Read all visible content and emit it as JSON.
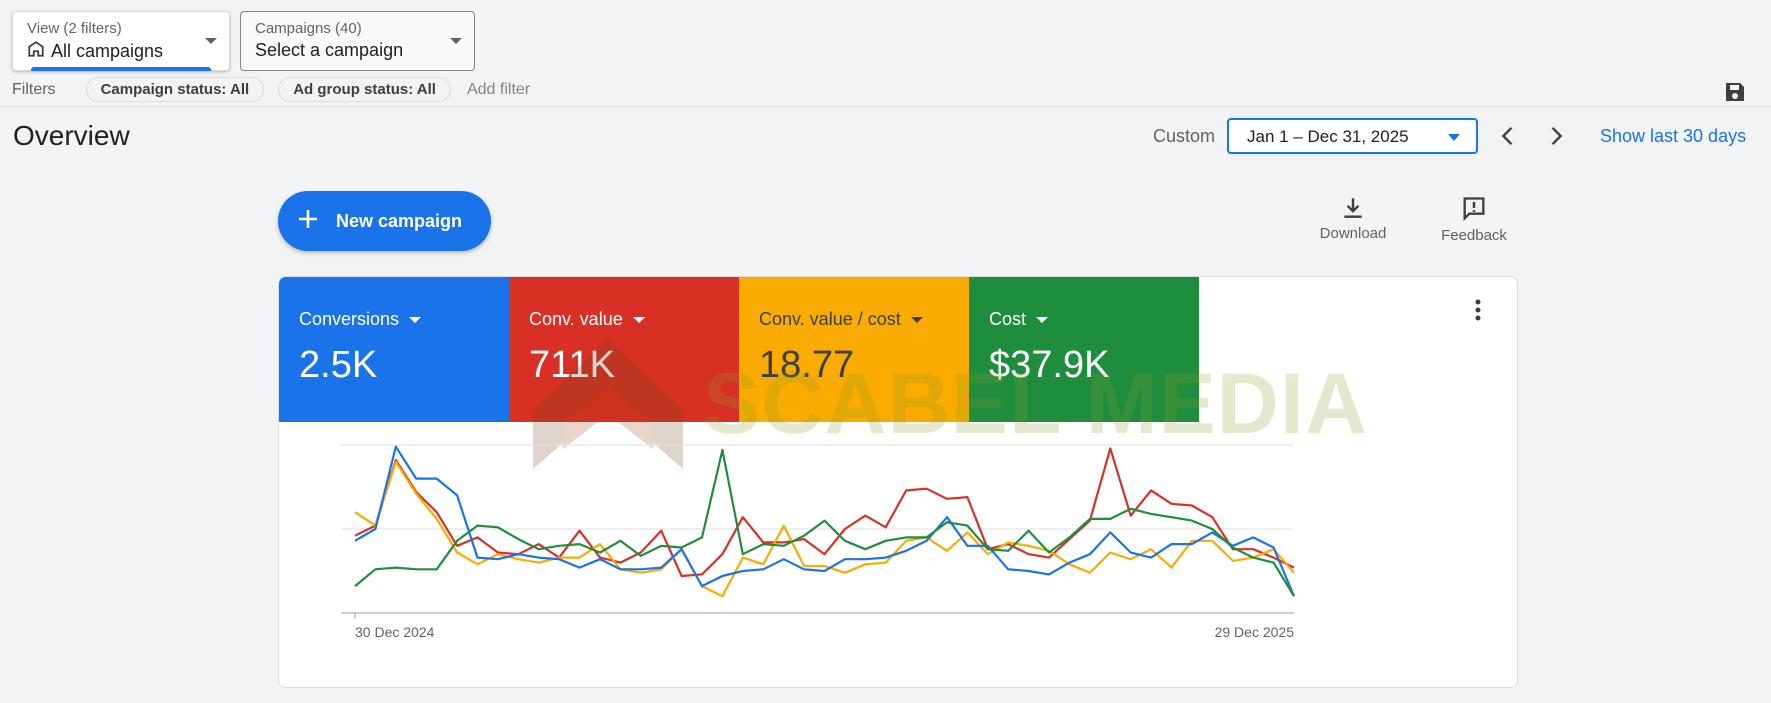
{
  "view_selector": {
    "sub": "View (2 filters)",
    "value": "All campaigns"
  },
  "campaign_selector": {
    "sub": "Campaigns (40)",
    "value": "Select a campaign"
  },
  "filters": {
    "label": "Filters",
    "chips": [
      "Campaign status: All",
      "Ad group status: All"
    ],
    "add": "Add filter"
  },
  "header": {
    "title": "Overview",
    "custom_label": "Custom",
    "date_range": "Jan 1 – Dec 31, 2025",
    "show_last": "Show last 30 days"
  },
  "actions": {
    "new_campaign": "New campaign",
    "download": "Download",
    "feedback": "Feedback"
  },
  "metrics": [
    {
      "label": "Conversions",
      "value": "2.5K",
      "color": "#1a73e8"
    },
    {
      "label": "Conv. value",
      "value": "711K",
      "color": "#d93025"
    },
    {
      "label": "Conv. value / cost",
      "value": "18.77",
      "color": "#f9ab00"
    },
    {
      "label": "Cost",
      "value": "$37.9K",
      "color": "#1e8e3e"
    }
  ],
  "watermark": "SCABEL MEDIA",
  "chart_data": {
    "type": "line",
    "x_start_label": "30 Dec 2024",
    "x_end_label": "29 Dec 2025",
    "ylim": [
      0,
      100
    ],
    "grid": true,
    "series": [
      {
        "color": "#d93025",
        "values": [
          46,
          52,
          91,
          72,
          60,
          40,
          45,
          36,
          35,
          41,
          33,
          49,
          33,
          30,
          36,
          49,
          22,
          23,
          35,
          57,
          42,
          42,
          44,
          35,
          50,
          58,
          51,
          73,
          74,
          68,
          69,
          38,
          41,
          35,
          33,
          44,
          55,
          98,
          58,
          73,
          65,
          64,
          57,
          38,
          38,
          33,
          27
        ]
      },
      {
        "color": "#f9ab00",
        "values": [
          60,
          52,
          90,
          71,
          56,
          36,
          29,
          35,
          32,
          30,
          33,
          33,
          41,
          26,
          24,
          26,
          38,
          16,
          10,
          33,
          29,
          52,
          28,
          28,
          24,
          29,
          30,
          43,
          45,
          37,
          48,
          35,
          42,
          40,
          37,
          29,
          24,
          36,
          32,
          38,
          27,
          43,
          43,
          31,
          33,
          38,
          24
        ]
      },
      {
        "color": "#1a73e8",
        "values": [
          43,
          50,
          99,
          80,
          80,
          70,
          33,
          32,
          35,
          33,
          32,
          27,
          32,
          26,
          26,
          27,
          38,
          16,
          22,
          25,
          26,
          32,
          26,
          25,
          32,
          32,
          33,
          37,
          43,
          57,
          40,
          40,
          26,
          25,
          23,
          30,
          35,
          48,
          36,
          33,
          41,
          41,
          48,
          40,
          45,
          39,
          10
        ]
      },
      {
        "color": "#1e8e3e",
        "values": [
          16,
          26,
          27,
          26,
          26,
          43,
          52,
          51,
          44,
          38,
          40,
          41,
          36,
          43,
          34,
          40,
          39,
          45,
          97,
          35,
          41,
          40,
          46,
          55,
          43,
          38,
          43,
          45,
          45,
          54,
          52,
          38,
          37,
          49,
          36,
          45,
          56,
          56,
          62,
          59,
          57,
          55,
          50,
          39,
          33,
          30,
          10
        ]
      }
    ]
  }
}
